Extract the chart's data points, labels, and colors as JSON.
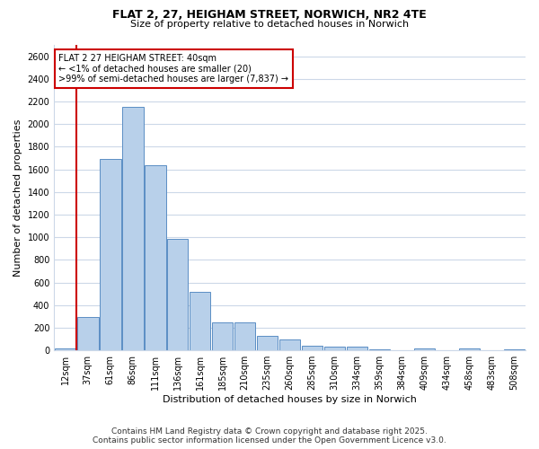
{
  "title_line1": "FLAT 2, 27, HEIGHAM STREET, NORWICH, NR2 4TE",
  "title_line2": "Size of property relative to detached houses in Norwich",
  "xlabel": "Distribution of detached houses by size in Norwich",
  "ylabel": "Number of detached properties",
  "categories": [
    "12sqm",
    "37sqm",
    "61sqm",
    "86sqm",
    "111sqm",
    "136sqm",
    "161sqm",
    "185sqm",
    "210sqm",
    "235sqm",
    "260sqm",
    "285sqm",
    "310sqm",
    "334sqm",
    "359sqm",
    "384sqm",
    "409sqm",
    "434sqm",
    "458sqm",
    "483sqm",
    "508sqm"
  ],
  "bar_heights": [
    15,
    295,
    1690,
    2150,
    1635,
    985,
    520,
    250,
    250,
    125,
    100,
    40,
    30,
    30,
    12,
    0,
    18,
    0,
    18,
    0,
    12
  ],
  "bar_color": "#b8d0ea",
  "bar_edge_color": "#5b8ec4",
  "background_color": "#ffffff",
  "grid_color": "#ccd8e8",
  "red_line_x": 1,
  "annotation_text": "FLAT 2 27 HEIGHAM STREET: 40sqm\n← <1% of detached houses are smaller (20)\n>99% of semi-detached houses are larger (7,837) →",
  "annotation_box_color": "#ffffff",
  "annotation_box_edge_color": "#cc0000",
  "ylim": [
    0,
    2700
  ],
  "yticks": [
    0,
    200,
    400,
    600,
    800,
    1000,
    1200,
    1400,
    1600,
    1800,
    2000,
    2200,
    2400,
    2600
  ],
  "footer_line1": "Contains HM Land Registry data © Crown copyright and database right 2025.",
  "footer_line2": "Contains public sector information licensed under the Open Government Licence v3.0.",
  "red_line_color": "#cc0000",
  "title_fontsize": 9,
  "subtitle_fontsize": 8,
  "ylabel_fontsize": 8,
  "xlabel_fontsize": 8,
  "tick_fontsize": 7,
  "annotation_fontsize": 7,
  "footer_fontsize": 6.5
}
